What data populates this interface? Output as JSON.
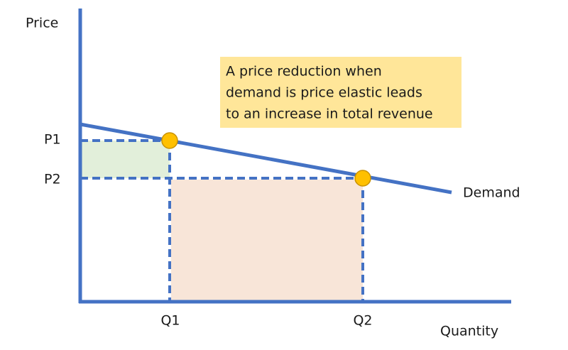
{
  "axes": {
    "y_label": "Price",
    "x_label": "Quantity"
  },
  "price_labels": [
    "P1",
    "P2"
  ],
  "quantity_labels": [
    "Q1",
    "Q2"
  ],
  "curve_label": "Demand",
  "note": {
    "lines": [
      "A price reduction when",
      "demand is price elastic leads",
      "to an increase in total revenue"
    ]
  }
}
